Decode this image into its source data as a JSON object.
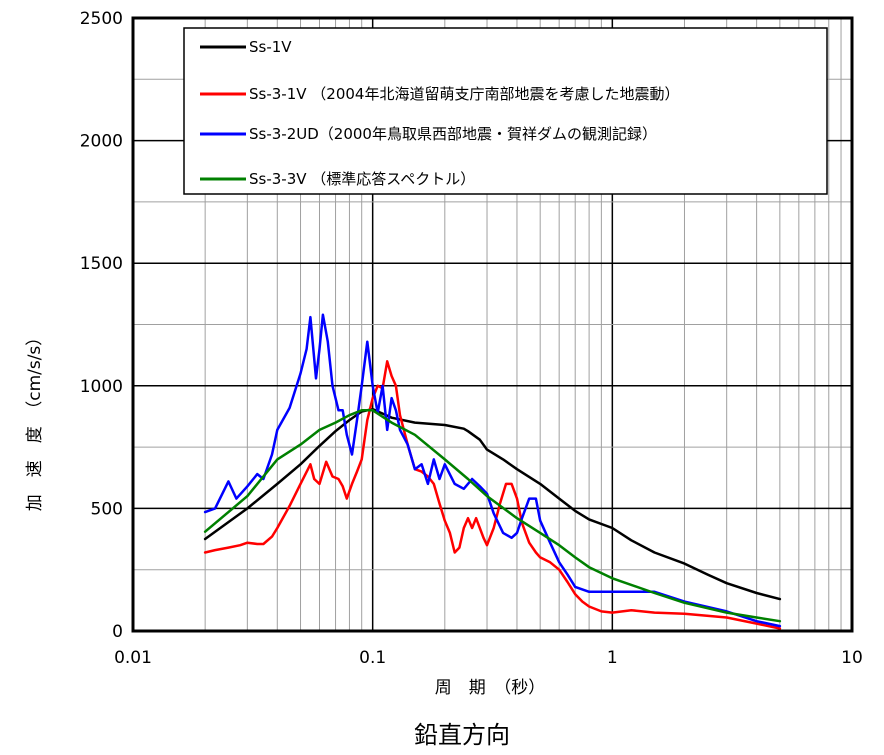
{
  "chart_data": {
    "type": "line",
    "title": "",
    "caption": "鉛直方向",
    "xlabel": "周　期　（秒）",
    "ylabel": "加　速　度　（cm/s/s）",
    "x_scale": "log",
    "xlim": [
      0.01,
      10
    ],
    "ylim": [
      0,
      2500
    ],
    "grid": true,
    "legend_position": "top-right",
    "x_tick_labels": [
      "0.01",
      "0.1",
      "1",
      "10"
    ],
    "y_tick_labels": [
      "0",
      "500",
      "1000",
      "1500",
      "2000",
      "2500"
    ],
    "series": [
      {
        "name": "Ss-1V",
        "color": "#000000",
        "points": [
          [
            0.02,
            375
          ],
          [
            0.03,
            500
          ],
          [
            0.04,
            600
          ],
          [
            0.05,
            680
          ],
          [
            0.06,
            755
          ],
          [
            0.07,
            815
          ],
          [
            0.08,
            860
          ],
          [
            0.09,
            895
          ],
          [
            0.1,
            905
          ],
          [
            0.12,
            870
          ],
          [
            0.15,
            850
          ],
          [
            0.2,
            840
          ],
          [
            0.24,
            825
          ],
          [
            0.25,
            815
          ],
          [
            0.28,
            780
          ],
          [
            0.3,
            740
          ],
          [
            0.35,
            700
          ],
          [
            0.4,
            660
          ],
          [
            0.5,
            600
          ],
          [
            0.6,
            540
          ],
          [
            0.7,
            490
          ],
          [
            0.8,
            455
          ],
          [
            1.0,
            420
          ],
          [
            1.2,
            370
          ],
          [
            1.5,
            320
          ],
          [
            2.0,
            275
          ],
          [
            2.5,
            230
          ],
          [
            3.0,
            195
          ],
          [
            4.0,
            155
          ],
          [
            5.0,
            130
          ]
        ]
      },
      {
        "name": "Ss-3-1V （2004年北海道留萌支庁南部地震を考慮した地震動）",
        "color": "#ff0000",
        "points": [
          [
            0.02,
            320
          ],
          [
            0.022,
            330
          ],
          [
            0.025,
            340
          ],
          [
            0.028,
            350
          ],
          [
            0.03,
            360
          ],
          [
            0.033,
            355
          ],
          [
            0.035,
            355
          ],
          [
            0.038,
            385
          ],
          [
            0.04,
            420
          ],
          [
            0.045,
            510
          ],
          [
            0.05,
            600
          ],
          [
            0.055,
            680
          ],
          [
            0.057,
            620
          ],
          [
            0.06,
            600
          ],
          [
            0.064,
            690
          ],
          [
            0.068,
            630
          ],
          [
            0.072,
            620
          ],
          [
            0.075,
            590
          ],
          [
            0.078,
            540
          ],
          [
            0.082,
            600
          ],
          [
            0.086,
            650
          ],
          [
            0.09,
            700
          ],
          [
            0.095,
            860
          ],
          [
            0.1,
            950
          ],
          [
            0.105,
            1000
          ],
          [
            0.11,
            990
          ],
          [
            0.115,
            1100
          ],
          [
            0.12,
            1040
          ],
          [
            0.125,
            1000
          ],
          [
            0.13,
            880
          ],
          [
            0.14,
            760
          ],
          [
            0.15,
            660
          ],
          [
            0.16,
            650
          ],
          [
            0.17,
            630
          ],
          [
            0.18,
            600
          ],
          [
            0.19,
            520
          ],
          [
            0.2,
            450
          ],
          [
            0.21,
            400
          ],
          [
            0.22,
            320
          ],
          [
            0.23,
            340
          ],
          [
            0.24,
            420
          ],
          [
            0.25,
            460
          ],
          [
            0.26,
            420
          ],
          [
            0.27,
            460
          ],
          [
            0.28,
            420
          ],
          [
            0.29,
            380
          ],
          [
            0.3,
            350
          ],
          [
            0.32,
            420
          ],
          [
            0.34,
            520
          ],
          [
            0.36,
            600
          ],
          [
            0.38,
            600
          ],
          [
            0.4,
            540
          ],
          [
            0.42,
            440
          ],
          [
            0.45,
            360
          ],
          [
            0.48,
            320
          ],
          [
            0.5,
            300
          ],
          [
            0.55,
            280
          ],
          [
            0.6,
            250
          ],
          [
            0.65,
            200
          ],
          [
            0.7,
            150
          ],
          [
            0.75,
            120
          ],
          [
            0.8,
            100
          ],
          [
            0.9,
            80
          ],
          [
            1.0,
            75
          ],
          [
            1.2,
            85
          ],
          [
            1.5,
            75
          ],
          [
            2.0,
            70
          ],
          [
            3.0,
            55
          ],
          [
            4.0,
            30
          ],
          [
            5.0,
            10
          ]
        ]
      },
      {
        "name": "Ss-3-2UD（2000年鳥取県西部地震・賀祥ダムの観測記録）",
        "color": "#0000ff",
        "points": [
          [
            0.02,
            485
          ],
          [
            0.022,
            500
          ],
          [
            0.025,
            610
          ],
          [
            0.027,
            540
          ],
          [
            0.03,
            590
          ],
          [
            0.033,
            640
          ],
          [
            0.035,
            620
          ],
          [
            0.038,
            720
          ],
          [
            0.04,
            820
          ],
          [
            0.045,
            910
          ],
          [
            0.05,
            1050
          ],
          [
            0.053,
            1150
          ],
          [
            0.055,
            1280
          ],
          [
            0.058,
            1030
          ],
          [
            0.06,
            1150
          ],
          [
            0.062,
            1290
          ],
          [
            0.065,
            1180
          ],
          [
            0.068,
            1000
          ],
          [
            0.072,
            900
          ],
          [
            0.075,
            900
          ],
          [
            0.078,
            800
          ],
          [
            0.082,
            720
          ],
          [
            0.086,
            860
          ],
          [
            0.09,
            1000
          ],
          [
            0.095,
            1180
          ],
          [
            0.1,
            1000
          ],
          [
            0.105,
            890
          ],
          [
            0.11,
            1000
          ],
          [
            0.115,
            820
          ],
          [
            0.12,
            950
          ],
          [
            0.125,
            900
          ],
          [
            0.13,
            820
          ],
          [
            0.14,
            760
          ],
          [
            0.15,
            660
          ],
          [
            0.16,
            680
          ],
          [
            0.17,
            600
          ],
          [
            0.18,
            700
          ],
          [
            0.19,
            620
          ],
          [
            0.2,
            680
          ],
          [
            0.22,
            600
          ],
          [
            0.24,
            580
          ],
          [
            0.26,
            620
          ],
          [
            0.28,
            590
          ],
          [
            0.3,
            560
          ],
          [
            0.32,
            480
          ],
          [
            0.35,
            400
          ],
          [
            0.38,
            380
          ],
          [
            0.4,
            400
          ],
          [
            0.42,
            460
          ],
          [
            0.45,
            540
          ],
          [
            0.48,
            540
          ],
          [
            0.5,
            450
          ],
          [
            0.55,
            360
          ],
          [
            0.6,
            280
          ],
          [
            0.65,
            230
          ],
          [
            0.7,
            180
          ],
          [
            0.8,
            160
          ],
          [
            0.9,
            160
          ],
          [
            1.0,
            160
          ],
          [
            1.2,
            160
          ],
          [
            1.5,
            160
          ],
          [
            2.0,
            120
          ],
          [
            3.0,
            80
          ],
          [
            4.0,
            40
          ],
          [
            5.0,
            20
          ]
        ]
      },
      {
        "name": "Ss-3-3V （標準応答スペクトル）",
        "color": "#008000",
        "points": [
          [
            0.02,
            405
          ],
          [
            0.03,
            550
          ],
          [
            0.04,
            700
          ],
          [
            0.05,
            760
          ],
          [
            0.06,
            820
          ],
          [
            0.07,
            850
          ],
          [
            0.08,
            880
          ],
          [
            0.09,
            900
          ],
          [
            0.1,
            900
          ],
          [
            0.12,
            850
          ],
          [
            0.15,
            800
          ],
          [
            0.2,
            700
          ],
          [
            0.25,
            620
          ],
          [
            0.3,
            550
          ],
          [
            0.4,
            460
          ],
          [
            0.5,
            400
          ],
          [
            0.6,
            350
          ],
          [
            0.7,
            300
          ],
          [
            0.8,
            260
          ],
          [
            1.0,
            215
          ],
          [
            1.5,
            155
          ],
          [
            2.0,
            115
          ],
          [
            3.0,
            75
          ],
          [
            4.0,
            55
          ],
          [
            5.0,
            40
          ]
        ]
      }
    ]
  }
}
